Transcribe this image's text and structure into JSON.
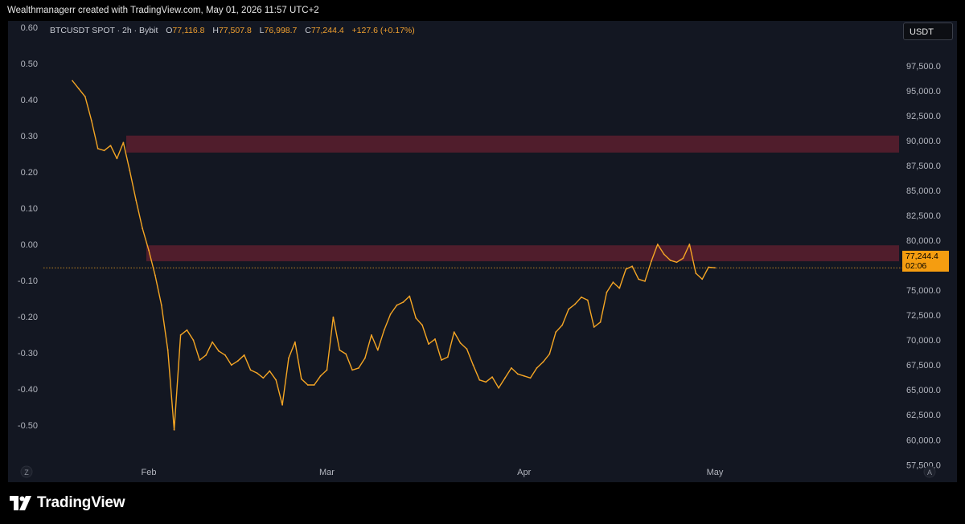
{
  "header": {
    "attribution": "Wealthmanagerr created with TradingView.com, May 01, 2026 11:57 UTC+2"
  },
  "legend": {
    "symbol": "BTCUSDT SPOT · 2h · Bybit",
    "open_label": "O",
    "open": "77,116.8",
    "high_label": "H",
    "high": "77,507.8",
    "low_label": "L",
    "low": "76,998.7",
    "close_label": "C",
    "close": "77,244.4",
    "change": "+127.6 (+0.17%)"
  },
  "unit_badge": "USDT",
  "current_price": {
    "value": "77,244.4",
    "countdown": "02:06"
  },
  "footer": {
    "brand": "TradingView"
  },
  "corner_buttons": {
    "left": "Z",
    "right": "A"
  },
  "colors": {
    "background": "#131722",
    "price_line": "#f5a623",
    "wick": "#f0a030",
    "zone": "#5c1f2e",
    "label_bg": "#f59d10"
  },
  "chart_data": {
    "type": "line",
    "title": "",
    "series": [
      {
        "name": "",
        "x": [
          "2026-01-20",
          "2026-01-21",
          "2026-01-22",
          "2026-01-23",
          "2026-01-24",
          "2026-01-25",
          "2026-01-26",
          "2026-01-27",
          "2026-01-28",
          "2026-01-29",
          "2026-01-30",
          "2026-01-31",
          "2026-02-01",
          "2026-02-02",
          "2026-02-03",
          "2026-02-04",
          "2026-02-05",
          "2026-02-06",
          "2026-02-07",
          "2026-02-08",
          "2026-02-09",
          "2026-02-10",
          "2026-02-11",
          "2026-02-12",
          "2026-02-13",
          "2026-02-14",
          "2026-02-15",
          "2026-02-16",
          "2026-02-17",
          "2026-02-18",
          "2026-02-19",
          "2026-02-20",
          "2026-02-21",
          "2026-02-22",
          "2026-02-23",
          "2026-02-24",
          "2026-02-25",
          "2026-02-26",
          "2026-02-27",
          "2026-02-28",
          "2026-03-01",
          "2026-03-02",
          "2026-03-03",
          "2026-03-04",
          "2026-03-05",
          "2026-03-06",
          "2026-03-07",
          "2026-03-08",
          "2026-03-09",
          "2026-03-10",
          "2026-03-11",
          "2026-03-12",
          "2026-03-13",
          "2026-03-14",
          "2026-03-15",
          "2026-03-16",
          "2026-03-17",
          "2026-03-18",
          "2026-03-19",
          "2026-03-20",
          "2026-03-21",
          "2026-03-22",
          "2026-03-23",
          "2026-03-24",
          "2026-03-25",
          "2026-03-26",
          "2026-03-27",
          "2026-03-28",
          "2026-03-29",
          "2026-03-30",
          "2026-03-31",
          "2026-04-01",
          "2026-04-02",
          "2026-04-03",
          "2026-04-04",
          "2026-04-05",
          "2026-04-06",
          "2026-04-07",
          "2026-04-08",
          "2026-04-09",
          "2026-04-10",
          "2026-04-11",
          "2026-04-12",
          "2026-04-13",
          "2026-04-14",
          "2026-04-15",
          "2026-04-16",
          "2026-04-17",
          "2026-04-18",
          "2026-04-19",
          "2026-04-20",
          "2026-04-21",
          "2026-04-22",
          "2026-04-23",
          "2026-04-24",
          "2026-04-25",
          "2026-04-26",
          "2026-04-27",
          "2026-04-28",
          "2026-04-29",
          "2026-04-30",
          "2026-05-01"
        ],
        "values": [
          96000,
          95200,
          94400,
          92000,
          89200,
          89000,
          89500,
          88200,
          89800,
          87000,
          84000,
          81200,
          79000,
          76500,
          73500,
          69000,
          61000,
          70500,
          71000,
          70000,
          68000,
          68500,
          69800,
          68900,
          68500,
          67500,
          67900,
          68500,
          67000,
          66700,
          66200,
          66900,
          66000,
          63500,
          68200,
          69800,
          66100,
          65500,
          65500,
          66400,
          67000,
          72300,
          69000,
          68600,
          67000,
          67200,
          68200,
          70500,
          69000,
          71000,
          72600,
          73500,
          73800,
          74400,
          72200,
          71500,
          69600,
          70100,
          68000,
          68300,
          70800,
          69700,
          69100,
          67500,
          66000,
          65800,
          66300,
          65200,
          66200,
          67200,
          66600,
          66400,
          66200,
          67200,
          67800,
          68600,
          70800,
          71500,
          73100,
          73600,
          74300,
          74000,
          71300,
          71800,
          74800,
          75800,
          75200,
          77100,
          77400,
          76100,
          75900,
          77900,
          79600,
          78600,
          78000,
          77800,
          78200,
          79600,
          76700,
          76100,
          77300,
          77244
        ]
      }
    ],
    "ylim": [
      55750,
      102000
    ],
    "y_ticks": [
      "57,500.0",
      "60,000.0",
      "62,500.0",
      "65,000.0",
      "67,500.0",
      "70,000.0",
      "72,500.0",
      "75,000.0",
      "77,500.0",
      "80,000.0",
      "82,500.0",
      "85,000.0",
      "87,500.0",
      "90,000.0",
      "92,500.0",
      "95,000.0",
      "97,500.0"
    ],
    "y2_ticks": [
      "0.60",
      "0.50",
      "0.40",
      "0.30",
      "0.20",
      "0.10",
      "0.00",
      "-0.10",
      "-0.20",
      "-0.30",
      "-0.40",
      "-0.50"
    ],
    "x_ticks": [
      {
        "label": "Feb",
        "date": "2026-02-01"
      },
      {
        "label": "Mar",
        "date": "2026-03-01"
      },
      {
        "label": "Apr",
        "date": "2026-04-01"
      },
      {
        "label": "May",
        "date": "2026-05-01"
      }
    ],
    "zones": [
      {
        "from": 88800,
        "to": 90500
      },
      {
        "from": 77900,
        "to": 79500
      }
    ],
    "last_price": 77244.4,
    "grid": false
  }
}
